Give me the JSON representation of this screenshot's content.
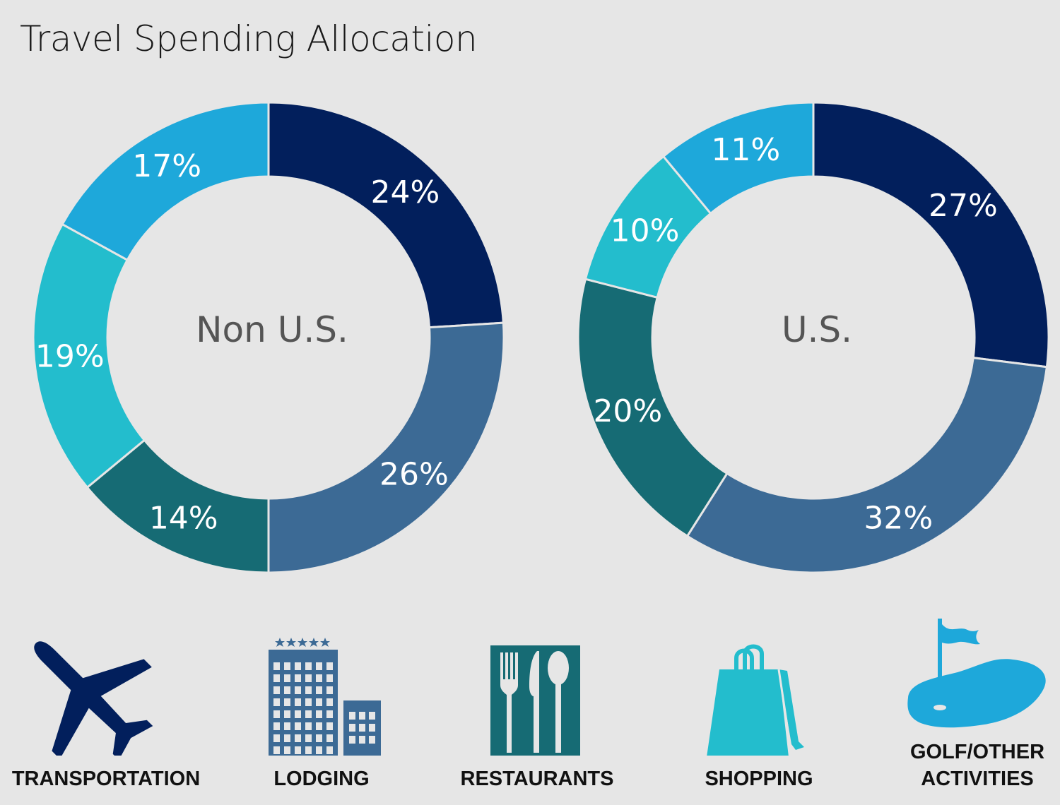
{
  "title": "Travel Spending Allocation",
  "colors": {
    "transportation": "#021f5c",
    "lodging": "#3c6a95",
    "restaurants": "#166b74",
    "shopping": "#23bdcd",
    "golf_other": "#1ea8da"
  },
  "chart_data": [
    {
      "type": "pie",
      "center_label": "Non U.S.",
      "categories": [
        "TRANSPORTATION",
        "LODGING",
        "RESTAURANTS",
        "SHOPPING",
        "GOLF/OTHER ACTIVITIES"
      ],
      "values": [
        24,
        26,
        14,
        19,
        17
      ],
      "labels": [
        "24%",
        "26%",
        "14%",
        "19%",
        "17%"
      ]
    },
    {
      "type": "pie",
      "center_label": "U.S.",
      "categories": [
        "TRANSPORTATION",
        "LODGING",
        "RESTAURANTS",
        "SHOPPING",
        "GOLF/OTHER ACTIVITIES"
      ],
      "values": [
        27,
        32,
        20,
        10,
        11
      ],
      "labels": [
        "27%",
        "32%",
        "20%",
        "10%",
        "11%"
      ]
    }
  ],
  "legend": [
    {
      "label": "TRANSPORTATION",
      "icon": "airplane-icon"
    },
    {
      "label": "LODGING",
      "icon": "hotel-icon"
    },
    {
      "label": "RESTAURANTS",
      "icon": "cutlery-icon"
    },
    {
      "label": "SHOPPING",
      "icon": "shopping-bag-icon"
    },
    {
      "label": "GOLF/OTHER\nACTIVITIES",
      "icon": "golf-flag-icon"
    }
  ]
}
